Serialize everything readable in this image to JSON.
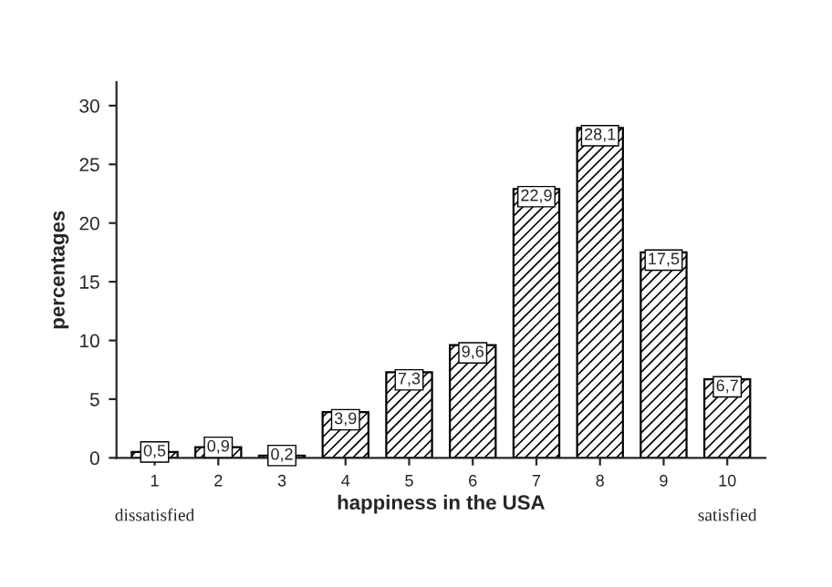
{
  "chart_data": {
    "type": "bar",
    "xlabel": "happiness in the USA",
    "ylabel": "percentages",
    "categories": [
      "1",
      "2",
      "3",
      "4",
      "5",
      "6",
      "7",
      "8",
      "9",
      "10"
    ],
    "values": [
      0.5,
      0.9,
      0.2,
      3.9,
      7.3,
      9.6,
      22.9,
      28.1,
      17.5,
      6.7
    ],
    "value_labels": [
      "0,5",
      "0,9",
      "0,2",
      "3,9",
      "7,3",
      "9,6",
      "22,9",
      "28,1",
      "17,5",
      "6,7"
    ],
    "color": "#000000",
    "ylim": [
      0,
      32
    ],
    "yticks": [
      0,
      5,
      10,
      15,
      20,
      25,
      30
    ],
    "grid": false,
    "legend": false,
    "annotations": [
      "dissatisfied",
      "satisfied"
    ]
  }
}
